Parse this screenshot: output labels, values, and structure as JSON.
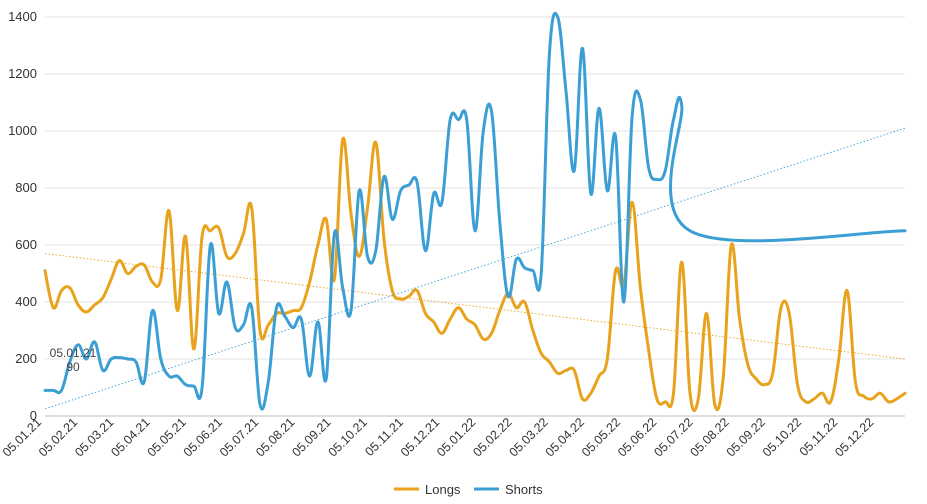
{
  "chart_data": {
    "type": "line",
    "title": "",
    "xlabel": "",
    "ylabel": "",
    "ylim": [
      0,
      1400
    ],
    "yticks": [
      0,
      200,
      400,
      600,
      800,
      1000,
      1200,
      1400
    ],
    "grid": "horizontal",
    "legend": "bottom-center",
    "categories": [
      "05.01.21",
      "05.02.21",
      "05.03.21",
      "05.04.21",
      "05.05.21",
      "05.06.21",
      "05.07.21",
      "05.08.21",
      "05.09.21",
      "05.10.21",
      "05.11.21",
      "05.12.21",
      "05.01.22",
      "05.02.22",
      "05.03.22",
      "05.04.22",
      "05.05.22",
      "05.06.22",
      "05.07.22",
      "05.08.22",
      "05.09.22",
      "05.10.22",
      "05.11.22",
      "05.12.22"
    ],
    "x_range": [
      0,
      104
    ],
    "series": [
      {
        "name": "Longs",
        "color": "#E8A21C",
        "x": [
          0,
          1,
          2,
          3,
          4,
          5,
          6,
          7,
          8,
          9,
          10,
          11,
          12,
          13,
          14,
          15,
          16,
          17,
          18,
          19,
          20,
          21,
          22,
          23,
          24,
          25,
          26,
          27,
          28,
          29,
          30,
          31,
          32,
          33,
          34,
          35,
          36,
          37,
          38,
          39,
          40,
          41,
          42,
          43,
          44,
          45,
          46,
          47,
          48,
          49,
          50,
          51,
          52,
          53,
          54,
          55,
          56,
          57,
          58,
          59,
          60,
          61,
          62,
          63,
          64,
          65,
          66,
          67,
          68,
          69,
          70,
          71,
          72,
          73,
          74,
          75,
          76,
          77,
          78,
          79,
          80,
          81,
          82,
          83,
          84,
          85,
          86,
          87,
          88,
          89,
          90,
          91,
          92,
          93,
          94,
          95,
          96,
          97,
          98,
          99,
          100,
          101,
          102,
          103,
          104
        ],
        "values": [
          510,
          380,
          440,
          450,
          390,
          365,
          390,
          415,
          480,
          545,
          500,
          525,
          530,
          470,
          480,
          720,
          370,
          630,
          235,
          630,
          650,
          660,
          560,
          570,
          640,
          730,
          300,
          320,
          360,
          360,
          370,
          380,
          470,
          600,
          690,
          480,
          970,
          710,
          560,
          730,
          960,
          620,
          440,
          410,
          420,
          440,
          360,
          330,
          290,
          340,
          380,
          340,
          320,
          270,
          290,
          370,
          430,
          380,
          400,
          300,
          220,
          190,
          150,
          160,
          160,
          60,
          80,
          140,
          200,
          510,
          460,
          750,
          450,
          230,
          60,
          50,
          80,
          540,
          80,
          60,
          360,
          40,
          130,
          600,
          340,
          180,
          130,
          110,
          150,
          380,
          360,
          110,
          50,
          60,
          80,
          50,
          200,
          440,
          120,
          70,
          60,
          80,
          50,
          60,
          80
        ]
      },
      {
        "name": "Shorts",
        "color": "#3B9FD4",
        "x": [
          0,
          1,
          2,
          3,
          4,
          5,
          6,
          7,
          8,
          9,
          10,
          11,
          12,
          13,
          14,
          15,
          16,
          17,
          18,
          19,
          20,
          21,
          22,
          23,
          24,
          25,
          26,
          27,
          28,
          29,
          30,
          31,
          32,
          33,
          34,
          35,
          36,
          37,
          38,
          39,
          40,
          41,
          42,
          43,
          44,
          45,
          46,
          47,
          48,
          49,
          50,
          51,
          52,
          53,
          54,
          55,
          56,
          57,
          58,
          59,
          60,
          61,
          62,
          63,
          64,
          65,
          66,
          67,
          68,
          69,
          70,
          71,
          72,
          73,
          74,
          75,
          76,
          77,
          78,
          79,
          80,
          81,
          82,
          83,
          84,
          85,
          86,
          87,
          88,
          89,
          90,
          91,
          92,
          93,
          94,
          95,
          96,
          97,
          98,
          99,
          100,
          101,
          102,
          103,
          104
        ],
        "values": [
          90,
          90,
          90,
          190,
          250,
          200,
          260,
          160,
          200,
          205,
          200,
          190,
          120,
          370,
          200,
          140,
          140,
          110,
          105,
          100,
          600,
          360,
          470,
          310,
          320,
          380,
          40,
          120,
          380,
          350,
          310,
          340,
          140,
          330,
          130,
          640,
          450,
          370,
          790,
          560,
          580,
          840,
          690,
          790,
          810,
          820,
          580,
          780,
          750,
          1040,
          1040,
          1040,
          650,
          1000,
          1070,
          680,
          420,
          550,
          520,
          510,
          500,
          1270,
          1400,
          1140,
          860,
          1290,
          780,
          1080,
          790,
          980,
          400,
          1050,
          1110,
          870,
          830,
          860,
          1040,
          1090,
          650,
          650,
          650,
          650,
          650,
          650,
          650,
          650,
          650,
          650,
          650,
          650,
          650,
          650,
          650,
          650,
          650,
          650,
          650,
          650,
          650,
          650,
          650,
          650,
          650,
          650,
          650
        ]
      },
      {
        "name": "Longs trend",
        "color": "#E8A21C",
        "style": "dotted",
        "x": [
          0,
          104
        ],
        "values": [
          570,
          200
        ]
      },
      {
        "name": "Shorts trend",
        "color": "#3B9FD4",
        "style": "dotted",
        "x": [
          0,
          104
        ],
        "values": [
          25,
          1010
        ]
      }
    ],
    "annotations": [
      {
        "date": "05.01.21",
        "value": "90"
      }
    ],
    "legend_labels": [
      "Longs",
      "Shorts"
    ]
  }
}
